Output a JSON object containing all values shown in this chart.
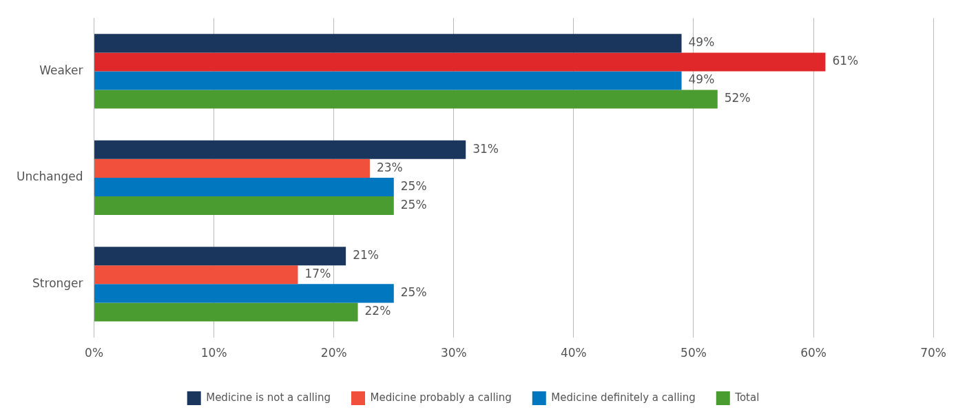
{
  "chart_data": {
    "type": "bar",
    "orientation": "horizontal",
    "categories": [
      "Weaker",
      "Unchanged",
      "Stronger"
    ],
    "series": [
      {
        "name": "Medicine is not a calling",
        "color": "#1a365d",
        "values": [
          49,
          31,
          21
        ],
        "value_labels": [
          "49%",
          "31%",
          "21%"
        ]
      },
      {
        "name": "Medicine probably a calling",
        "color": "#f0503c",
        "colors": [
          "#e0282a",
          "#f0503c",
          "#f0503c"
        ],
        "values": [
          61,
          23,
          17
        ],
        "value_labels": [
          "61%",
          "23%",
          "17%"
        ]
      },
      {
        "name": "Medicine definitely a calling",
        "color": "#0077be",
        "values": [
          49,
          25,
          25
        ],
        "value_labels": [
          "49%",
          "25%",
          "25%"
        ]
      },
      {
        "name": "Total",
        "color": "#4a9b30",
        "values": [
          52,
          25,
          22
        ],
        "value_labels": [
          "52%",
          "25%",
          "22%"
        ]
      }
    ],
    "xlim": [
      0,
      70
    ],
    "xticks": [
      {
        "value": 0,
        "label": "0%"
      },
      {
        "value": 10,
        "label": "10%"
      },
      {
        "value": 20,
        "label": "20%"
      },
      {
        "value": 30,
        "label": "30%"
      },
      {
        "value": 40,
        "label": "40%"
      },
      {
        "value": 50,
        "label": "50%"
      },
      {
        "value": 60,
        "label": "60%"
      },
      {
        "value": 70,
        "label": "70%"
      }
    ],
    "grid": "x",
    "legend": "bottom"
  }
}
